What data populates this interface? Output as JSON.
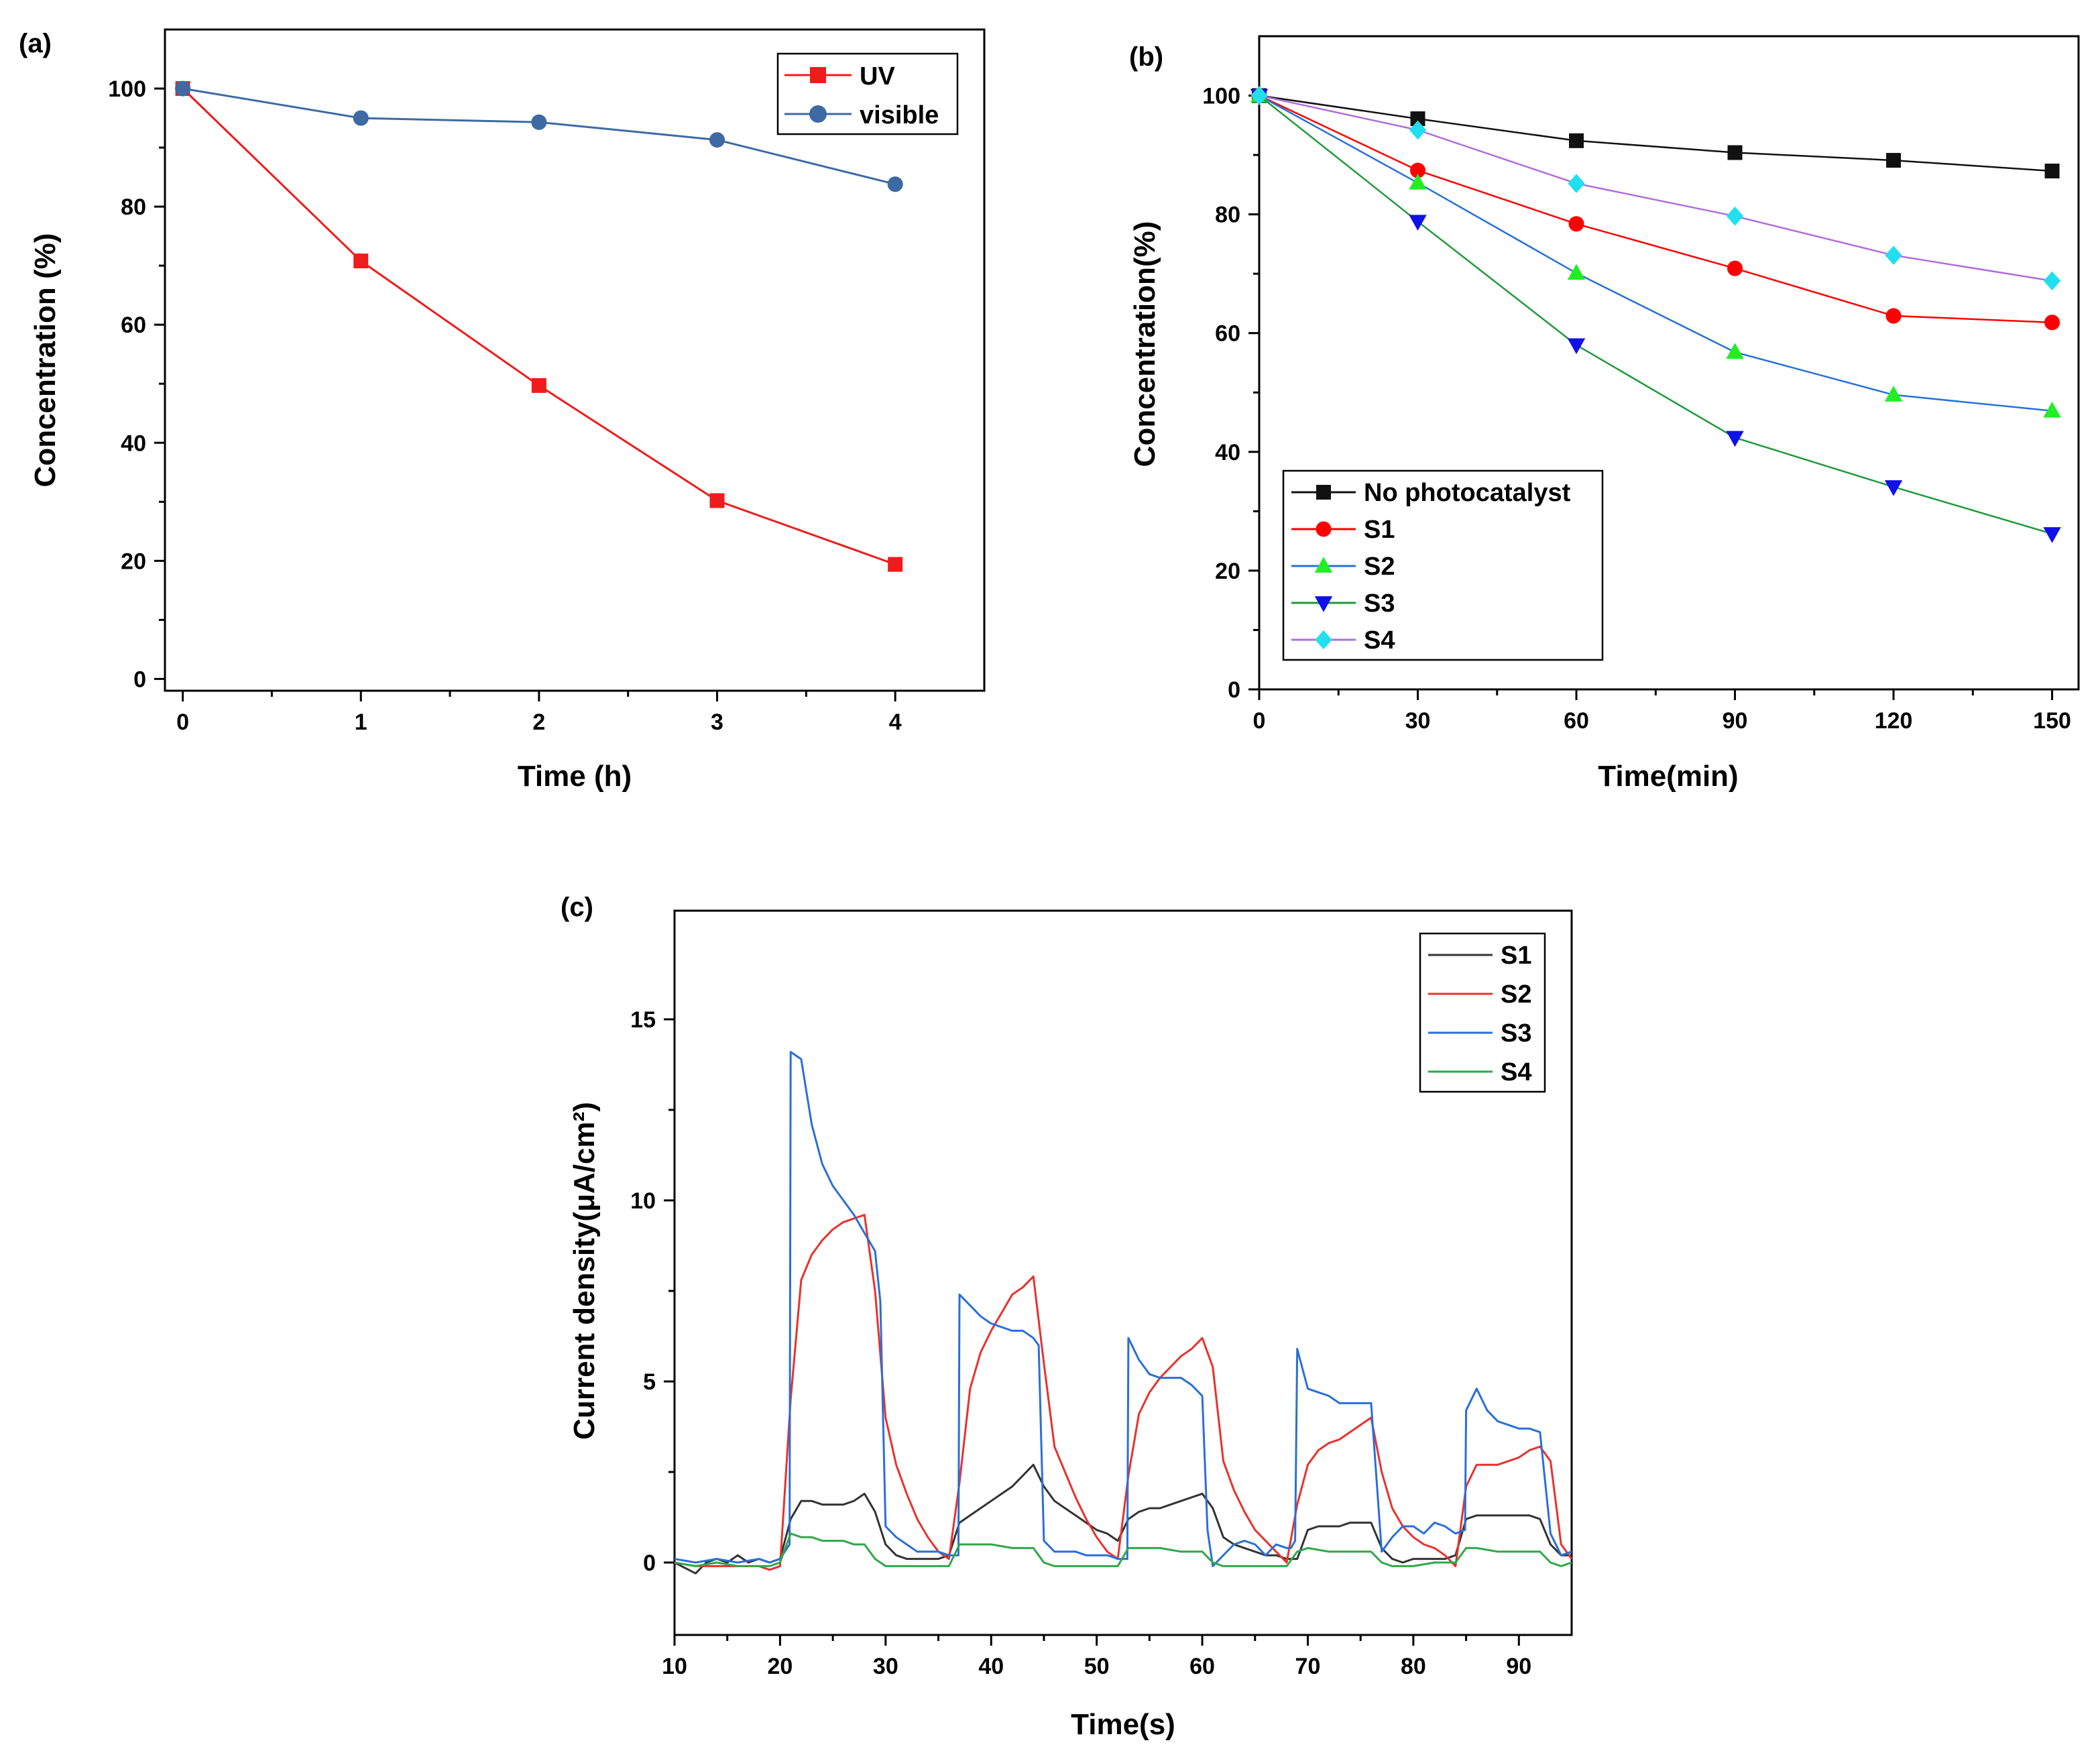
{
  "chart_data": [
    {
      "panel": "(a)",
      "type": "line",
      "title": "",
      "xlabel": "Time (h)",
      "ylabel": "Concentration (%)",
      "xlim": [
        -0.1,
        4.5
      ],
      "ylim": [
        -2,
        110
      ],
      "xticks": [
        0,
        1,
        2,
        3,
        4
      ],
      "yticks": [
        0,
        20,
        40,
        60,
        80,
        100
      ],
      "x": [
        0,
        1,
        2,
        3,
        4
      ],
      "legend_position": "top-right",
      "series": [
        {
          "name": "UV",
          "color": "#ee1c1c",
          "marker": "square",
          "values": [
            100,
            70.8,
            49.7,
            30.2,
            19.4
          ]
        },
        {
          "name": "visible",
          "color": "#3d6aa3",
          "marker": "circle",
          "values": [
            100,
            95,
            94.3,
            91.3,
            83.8
          ]
        }
      ]
    },
    {
      "panel": "(b)",
      "type": "line",
      "title": "",
      "xlabel": "Time(min)",
      "ylabel": "Concentration(%)",
      "xlim": [
        0,
        155
      ],
      "ylim": [
        0,
        110
      ],
      "xticks": [
        0,
        30,
        60,
        90,
        120,
        150
      ],
      "yticks": [
        0,
        20,
        40,
        60,
        80,
        100
      ],
      "x": [
        0,
        30,
        60,
        90,
        120,
        150
      ],
      "legend_position": "bottom-left",
      "series": [
        {
          "name": "No photocatalyst",
          "color": "#111111",
          "line_color": "#111111",
          "marker": "square",
          "values": [
            100,
            96.1,
            92.4,
            90.4,
            89.1,
            87.3
          ]
        },
        {
          "name": "S1",
          "color": "#ff0000",
          "line_color": "#ff0000",
          "marker": "circle",
          "values": [
            100,
            87.4,
            78.4,
            70.9,
            62.9,
            61.8
          ]
        },
        {
          "name": "S2",
          "color": "#22ee22",
          "line_color": "#2672d8",
          "marker": "triangle-up",
          "values": [
            100,
            85.3,
            70.1,
            56.8,
            49.6,
            46.9
          ]
        },
        {
          "name": "S3",
          "color": "#1010e8",
          "line_color": "#1f9a3a",
          "marker": "triangle-down",
          "values": [
            100,
            78.8,
            58,
            42.4,
            34.1,
            26.2
          ]
        },
        {
          "name": "S4",
          "color": "#20e0f0",
          "line_color": "#b26ddc",
          "marker": "diamond",
          "values": [
            100,
            94.2,
            85.2,
            79.7,
            73.1,
            68.8
          ]
        }
      ]
    },
    {
      "panel": "(c)",
      "type": "line",
      "title": "",
      "xlabel": "Time(s)",
      "ylabel": "Current density(μA/cm²)",
      "xlim": [
        10,
        95
      ],
      "ylim": [
        -2,
        18
      ],
      "xticks": [
        10,
        20,
        30,
        40,
        50,
        60,
        70,
        80,
        90
      ],
      "yticks": [
        0,
        5,
        10,
        15
      ],
      "legend_position": "top-right",
      "series": [
        {
          "name": "S1",
          "color": "#333333",
          "x": [
            10,
            12,
            13,
            14,
            15,
            16,
            17,
            18,
            19,
            20,
            21,
            22,
            23,
            24,
            25,
            26,
            27,
            28,
            29,
            30,
            31,
            32,
            33,
            34,
            35,
            36,
            37,
            38,
            39,
            40,
            41,
            42,
            43,
            44,
            45,
            46,
            47,
            48,
            49,
            50,
            51,
            52,
            53,
            54,
            55,
            56,
            57,
            58,
            59,
            60,
            61,
            62,
            63,
            64,
            65,
            66,
            67,
            68,
            69,
            70,
            71,
            72,
            73,
            74,
            75,
            76,
            77,
            78,
            79,
            80,
            81,
            82,
            83,
            84,
            85,
            86,
            87,
            88,
            89,
            90,
            91,
            92,
            93,
            94,
            95
          ],
          "y": [
            0,
            -0.3,
            0,
            0.1,
            0,
            0.2,
            0,
            0.1,
            0,
            0.1,
            1.2,
            1.7,
            1.7,
            1.6,
            1.6,
            1.6,
            1.7,
            1.9,
            1.4,
            0.5,
            0.2,
            0.1,
            0.1,
            0.1,
            0.1,
            0.2,
            1.1,
            1.3,
            1.5,
            1.7,
            1.9,
            2.1,
            2.4,
            2.7,
            2.1,
            1.7,
            1.5,
            1.3,
            1.1,
            0.9,
            0.8,
            0.6,
            1.2,
            1.4,
            1.5,
            1.5,
            1.6,
            1.7,
            1.8,
            1.9,
            1.5,
            0.7,
            0.5,
            0.4,
            0.3,
            0.2,
            0.2,
            0.1,
            0.1,
            0.9,
            1,
            1,
            1,
            1.1,
            1.1,
            1.1,
            0.4,
            0.1,
            0,
            0.1,
            0.1,
            0.1,
            0.1,
            0.2,
            1.2,
            1.3,
            1.3,
            1.3,
            1.3,
            1.3,
            1.3,
            1.2,
            0.5,
            0.2,
            0.2
          ]
        },
        {
          "name": "S2",
          "color": "#e8322f",
          "x": [
            10,
            12,
            14,
            16,
            18,
            19,
            20,
            21,
            22,
            23,
            24,
            25,
            26,
            27,
            28,
            29,
            30,
            31,
            32,
            33,
            34,
            35,
            36,
            37,
            38,
            39,
            40,
            41,
            42,
            43,
            44,
            45,
            46,
            47,
            48,
            49,
            50,
            51,
            52,
            53,
            54,
            55,
            56,
            57,
            58,
            59,
            60,
            61,
            62,
            63,
            64,
            65,
            66,
            67,
            68,
            69,
            70,
            71,
            72,
            73,
            74,
            75,
            76,
            77,
            78,
            79,
            80,
            81,
            82,
            83,
            84,
            85,
            86,
            87,
            88,
            89,
            90,
            91,
            92,
            93,
            94,
            95
          ],
          "y": [
            0,
            -0.1,
            -0.1,
            -0.1,
            -0.1,
            -0.2,
            -0.1,
            4.5,
            7.8,
            8.5,
            8.9,
            9.2,
            9.4,
            9.5,
            9.6,
            7.5,
            4,
            2.7,
            1.9,
            1.2,
            0.7,
            0.3,
            0.1,
            2.2,
            4.8,
            5.8,
            6.4,
            6.9,
            7.4,
            7.6,
            7.9,
            5.5,
            3.2,
            2.5,
            1.8,
            1.2,
            0.7,
            0.3,
            0.1,
            2.4,
            4.1,
            4.7,
            5.1,
            5.4,
            5.7,
            5.9,
            6.2,
            5.4,
            2.8,
            2,
            1.4,
            0.9,
            0.6,
            0.3,
            0,
            1.6,
            2.7,
            3.1,
            3.3,
            3.4,
            3.6,
            3.8,
            4,
            2.5,
            1.5,
            1,
            0.7,
            0.5,
            0.4,
            0.2,
            -0.1,
            2.1,
            2.7,
            2.7,
            2.7,
            2.8,
            2.9,
            3.1,
            3.2,
            2.8,
            0.5,
            0.1
          ]
        },
        {
          "name": "S3",
          "color": "#2a6fd8",
          "x": [
            10,
            12,
            14,
            16,
            18,
            19,
            20,
            20.9,
            21,
            22,
            23,
            24,
            25,
            26,
            27,
            28,
            29,
            29.5,
            30,
            31,
            32,
            33,
            34,
            35,
            36,
            36.9,
            37,
            38,
            39,
            40,
            41,
            42,
            43,
            44,
            44.5,
            45,
            46,
            47,
            48,
            49,
            50,
            51,
            52,
            52.9,
            53,
            54,
            55,
            56,
            57,
            58,
            59,
            60,
            60.5,
            61,
            62,
            63,
            64,
            65,
            66,
            67,
            68,
            68.4,
            68.8,
            69,
            70,
            71,
            72,
            73,
            74,
            75,
            76,
            77,
            78,
            79,
            80,
            81,
            82,
            83,
            84,
            84.9,
            85,
            86,
            87,
            88,
            89,
            90,
            91,
            92,
            93,
            94,
            95
          ],
          "y": [
            0.1,
            0,
            0.1,
            0,
            0.1,
            0,
            0.1,
            0.5,
            14.1,
            13.9,
            12.1,
            11,
            10.4,
            10,
            9.6,
            9.1,
            8.6,
            7.2,
            1,
            0.7,
            0.5,
            0.3,
            0.3,
            0.3,
            0.2,
            0.2,
            7.4,
            7.1,
            6.8,
            6.6,
            6.5,
            6.4,
            6.4,
            6.2,
            6,
            0.6,
            0.3,
            0.3,
            0.3,
            0.2,
            0.2,
            0.2,
            0.1,
            0.1,
            6.2,
            5.6,
            5.2,
            5.1,
            5.1,
            5.1,
            4.9,
            4.6,
            0.9,
            -0.1,
            0.2,
            0.5,
            0.6,
            0.5,
            0.2,
            0.5,
            0.4,
            0.4,
            0.6,
            5.9,
            4.8,
            4.7,
            4.6,
            4.4,
            4.4,
            4.4,
            4.4,
            0.3,
            0.7,
            1,
            1,
            0.8,
            1.1,
            1,
            0.8,
            0.9,
            4.2,
            4.8,
            4.2,
            3.9,
            3.8,
            3.7,
            3.7,
            3.6,
            0.8,
            0.2,
            0.3
          ]
        },
        {
          "name": "S4",
          "color": "#2ea84a",
          "x": [
            10,
            12,
            14,
            16,
            18,
            19,
            20,
            21,
            22,
            23,
            24,
            25,
            26,
            27,
            28,
            29,
            30,
            32,
            34,
            36,
            37,
            38,
            40,
            42,
            44,
            45,
            46,
            48,
            50,
            52,
            53,
            54,
            56,
            58,
            60,
            61,
            62,
            64,
            66,
            68,
            69,
            70,
            72,
            74,
            76,
            77,
            78,
            80,
            82,
            84,
            85,
            86,
            88,
            90,
            92,
            93,
            94,
            95
          ],
          "y": [
            0,
            -0.1,
            0,
            -0.1,
            -0.1,
            -0.1,
            0,
            0.8,
            0.7,
            0.7,
            0.6,
            0.6,
            0.6,
            0.5,
            0.5,
            0.1,
            -0.1,
            -0.1,
            -0.1,
            -0.1,
            0.5,
            0.5,
            0.5,
            0.4,
            0.4,
            0,
            -0.1,
            -0.1,
            -0.1,
            -0.1,
            0.4,
            0.4,
            0.4,
            0.3,
            0.3,
            0,
            -0.1,
            -0.1,
            -0.1,
            -0.1,
            0.3,
            0.4,
            0.3,
            0.3,
            0.3,
            0,
            -0.1,
            -0.1,
            0,
            0,
            0.4,
            0.4,
            0.3,
            0.3,
            0.3,
            0,
            -0.1,
            0
          ]
        }
      ]
    }
  ]
}
